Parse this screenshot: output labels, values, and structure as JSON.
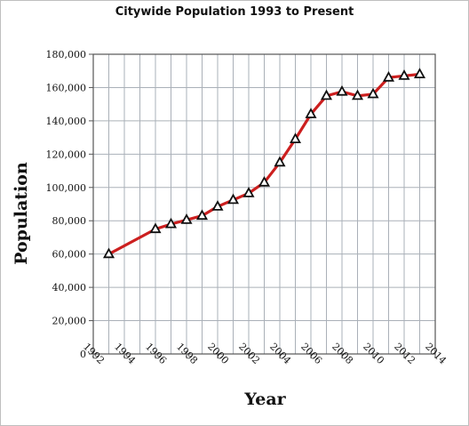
{
  "chart_data": {
    "type": "line",
    "title": "Citywide Population 1993 to Present",
    "xlabel": "Year",
    "ylabel": "Population",
    "xlim": [
      1992,
      2014
    ],
    "ylim": [
      0,
      180000
    ],
    "x_ticks": [
      "1992",
      "1994",
      "1996",
      "1998",
      "2000",
      "2002",
      "2004",
      "2006",
      "2008",
      "2010",
      "2012",
      "2014"
    ],
    "y_ticks": [
      "0",
      "20,000",
      "40,000",
      "60,000",
      "80,000",
      "100,000",
      "120,000",
      "140,000",
      "160,000",
      "180,000"
    ],
    "grid": true,
    "series": [
      {
        "marker": "triangle",
        "x": [
          1993,
          1996,
          1997,
          1998,
          1999,
          2000,
          2001,
          2002,
          2003,
          2004,
          2005,
          2006,
          2007,
          2008,
          2009,
          2010,
          2011,
          2012,
          2013
        ],
        "y": [
          60000,
          75000,
          78000,
          80500,
          83000,
          88500,
          92500,
          96500,
          103000,
          115000,
          129000,
          144000,
          155000,
          157500,
          155000,
          156000,
          166000,
          167000,
          168000
        ]
      }
    ],
    "colors": {
      "line": "#cc1f1f",
      "marker": "#111111",
      "grid": "#aab0b8",
      "axis": "#555555"
    }
  }
}
